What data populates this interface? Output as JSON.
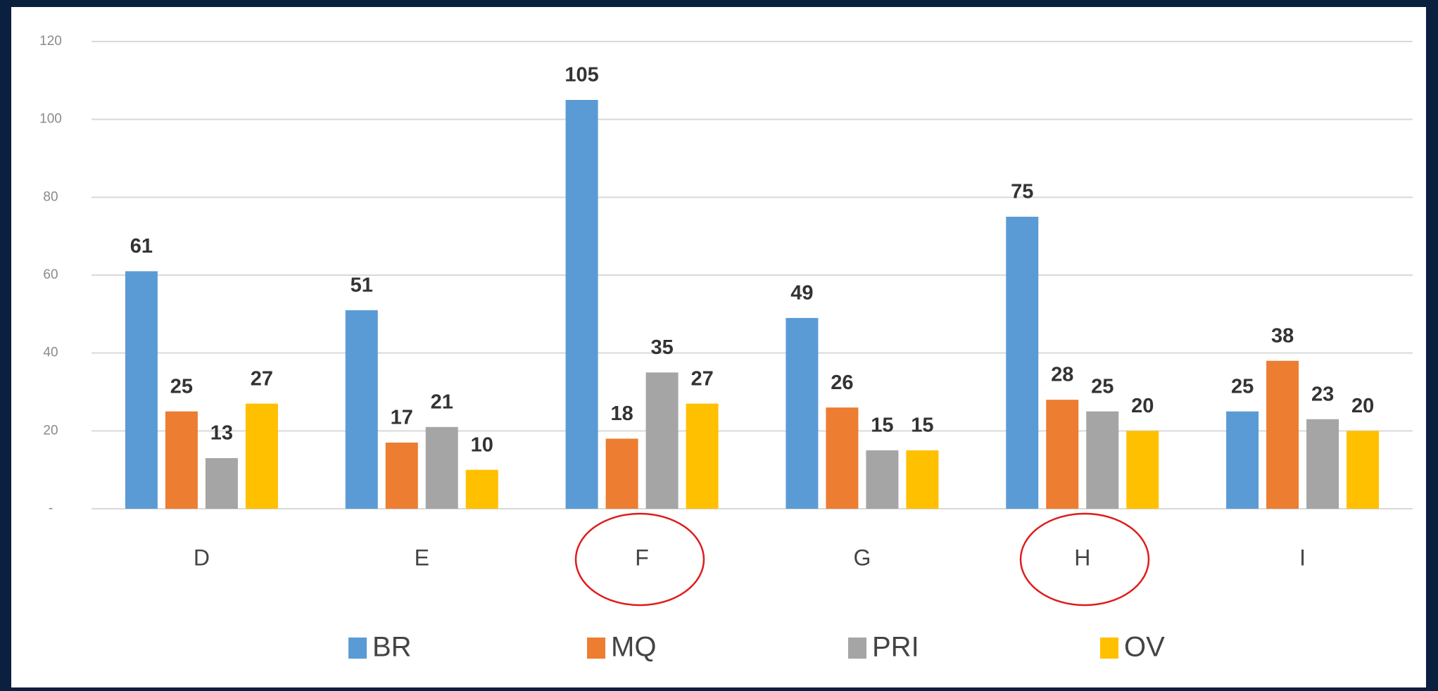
{
  "chart_data": {
    "type": "bar",
    "categories": [
      "D",
      "E",
      "F",
      "G",
      "H",
      "I"
    ],
    "series": [
      {
        "name": "BR",
        "color": "#5b9bd5",
        "values": [
          61,
          51,
          105,
          49,
          75,
          25
        ]
      },
      {
        "name": "MQ",
        "color": "#ed7d31",
        "values": [
          25,
          17,
          18,
          26,
          28,
          38
        ]
      },
      {
        "name": "PRI",
        "color": "#a5a5a5",
        "values": [
          13,
          21,
          35,
          15,
          25,
          23
        ]
      },
      {
        "name": "OV",
        "color": "#ffc000",
        "values": [
          27,
          10,
          27,
          15,
          20,
          20
        ]
      }
    ],
    "ylim": [
      0,
      120
    ],
    "yticks": [
      {
        "value": 0,
        "label": "-"
      },
      20,
      40,
      60,
      80,
      100,
      120
    ],
    "grid": true,
    "legend": "bottom"
  }
}
